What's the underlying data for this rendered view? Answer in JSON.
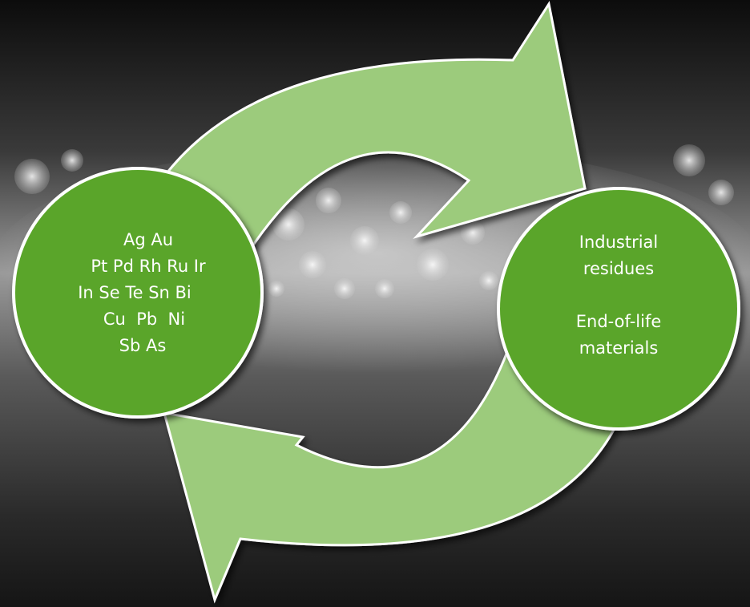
{
  "nodes": [
    {
      "lines": [
        "Ag Au",
        "Pt Pd Rh Ru Ir",
        "In Se Te Sn Bi",
        "Cu  Pb  Ni",
        "Sb As"
      ]
    },
    {
      "lines": [
        "Industrial",
        "residues",
        "End-of-life",
        "materials"
      ]
    }
  ]
}
